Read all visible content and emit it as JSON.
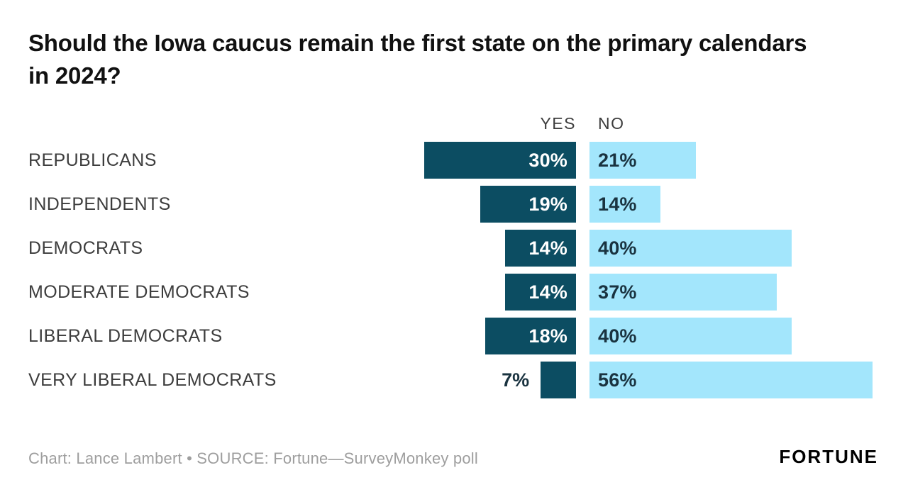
{
  "chart_data": {
    "type": "bar",
    "orientation": "horizontal-diverging",
    "title": "Should the Iowa caucus remain the first state on the primary calendars in 2024?",
    "categories": [
      "REPUBLICANS",
      "INDEPENDENTS",
      "DEMOCRATS",
      "MODERATE DEMOCRATS",
      "LIBERAL DEMOCRATS",
      "VERY LIBERAL DEMOCRATS"
    ],
    "series": [
      {
        "name": "YES",
        "values": [
          30,
          19,
          14,
          14,
          18,
          7
        ]
      },
      {
        "name": "NO",
        "values": [
          21,
          14,
          40,
          37,
          40,
          56
        ]
      }
    ],
    "value_suffix": "%",
    "xlim": [
      0,
      60
    ],
    "grid": false,
    "legend_position": "column-headers-top",
    "colors": {
      "yes_bar": "#0c4d62",
      "no_bar": "#a3e6fc",
      "yes_label_inside": "#ffffff",
      "value_label_dark": "#1a3340",
      "category_label": "#3d3d3d",
      "header_label": "#3d3d3d",
      "title": "#111111",
      "credit": "#9e9e9e"
    }
  },
  "footer": {
    "credit": "Chart: Lance Lambert • SOURCE: Fortune—SurveyMonkey poll",
    "logo": "FORTUNE"
  }
}
